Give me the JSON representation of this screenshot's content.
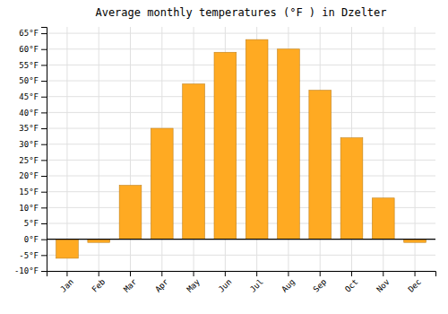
{
  "chart_data": {
    "type": "bar",
    "title": "Average monthly temperatures (°F ) in Dzelter",
    "categories": [
      "Jan",
      "Feb",
      "Mar",
      "Apr",
      "May",
      "Jun",
      "Jul",
      "Aug",
      "Sep",
      "Oct",
      "Nov",
      "Dec"
    ],
    "values": [
      -6,
      -1,
      17,
      35,
      49,
      59,
      63,
      60,
      47,
      32,
      13,
      -1
    ],
    "color": "#FFAA22",
    "ylim": [
      -10,
      67
    ],
    "yticks": [
      {
        "value": -10,
        "label": "-10°F"
      },
      {
        "value": -5,
        "label": "-5°F"
      },
      {
        "value": 0,
        "label": "0°F"
      },
      {
        "value": 5,
        "label": "5°F"
      },
      {
        "value": 10,
        "label": "10°F"
      },
      {
        "value": 15,
        "label": "15°F"
      },
      {
        "value": 20,
        "label": "20°F"
      },
      {
        "value": 25,
        "label": "25°F"
      },
      {
        "value": 30,
        "label": "30°F"
      },
      {
        "value": 35,
        "label": "35°F"
      },
      {
        "value": 40,
        "label": "40°F"
      },
      {
        "value": 45,
        "label": "45°F"
      },
      {
        "value": 50,
        "label": "50°F"
      },
      {
        "value": 55,
        "label": "55°F"
      },
      {
        "value": 60,
        "label": "60°F"
      },
      {
        "value": 65,
        "label": "65°F"
      }
    ],
    "grid": true
  }
}
